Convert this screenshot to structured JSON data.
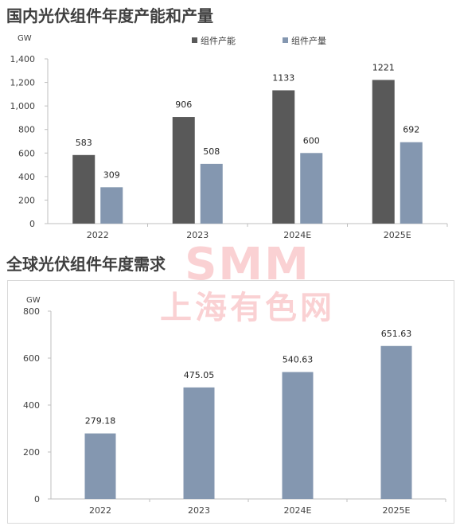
{
  "chart_data": [
    {
      "type": "bar",
      "title": "国内光伏组件年度产能和产量",
      "unit_label": "GW",
      "categories": [
        "2022",
        "2023",
        "2024E",
        "2025E"
      ],
      "series": [
        {
          "name": "组件产能",
          "color": "#595959",
          "values": [
            583,
            906,
            1133,
            1221
          ],
          "labels": [
            "583",
            "906",
            "1133",
            "1221"
          ]
        },
        {
          "name": "组件产量",
          "color": "#8497b0",
          "values": [
            309,
            508,
            600,
            692
          ],
          "labels": [
            "309",
            "508",
            "600",
            "692"
          ]
        }
      ],
      "ylim": [
        0,
        1400
      ],
      "yticks": [
        0,
        200,
        400,
        600,
        800,
        1000,
        1200,
        1400
      ],
      "ytick_labels": [
        "0",
        "200",
        "400",
        "600",
        "800",
        "1,000",
        "1,200",
        "1,400"
      ],
      "legend": "top",
      "grid": false
    },
    {
      "type": "bar",
      "title": "全球光伏组件年度需求",
      "unit_label": "GW",
      "categories": [
        "2022",
        "2023",
        "2024E",
        "2025E"
      ],
      "series": [
        {
          "color": "#8497b0",
          "values": [
            279.18,
            475.05,
            540.63,
            651.63
          ],
          "labels": [
            "279.18",
            "475.05",
            "540.63",
            "651.63"
          ]
        }
      ],
      "ylim": [
        0,
        800
      ],
      "yticks": [
        0,
        200,
        400,
        600,
        800
      ],
      "ytick_labels": [
        "0",
        "200",
        "400",
        "600",
        "800"
      ],
      "legend": "none",
      "grid": false
    }
  ],
  "watermark": {
    "logo": "SMM",
    "text": "上海有色网",
    "color": "#ec5a60"
  }
}
